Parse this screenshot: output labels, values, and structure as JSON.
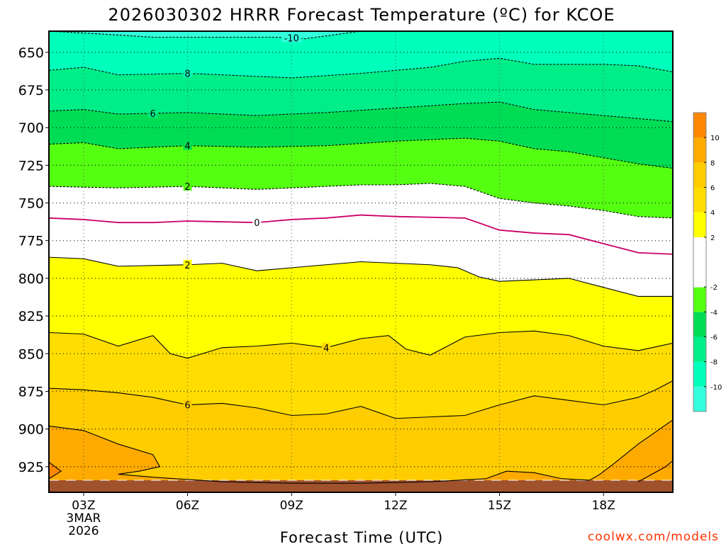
{
  "chart_data": {
    "type": "heatmap",
    "title": "2026030302 HRRR Forecast Temperature (ºC) for KCOE",
    "xlabel": "Forecast Time (UTC)",
    "ylabel": "",
    "credit": "coolwx.com/models",
    "x_range_hours": [
      2,
      20
    ],
    "y_range_hpa": [
      636,
      942
    ],
    "y_ticks": [
      650,
      675,
      700,
      725,
      750,
      775,
      800,
      825,
      850,
      875,
      900,
      925
    ],
    "x_ticks": [
      {
        "hour": 3,
        "label": "03Z",
        "extra": [
          "3MAR",
          "2026"
        ]
      },
      {
        "hour": 6,
        "label": "06Z"
      },
      {
        "hour": 9,
        "label": "09Z"
      },
      {
        "hour": 12,
        "label": "12Z"
      },
      {
        "hour": 15,
        "label": "15Z"
      },
      {
        "hour": 18,
        "label": "18Z"
      }
    ],
    "colorbar": [
      {
        "range": [
          -12,
          -10
        ],
        "color": "#33ffdd"
      },
      {
        "range": [
          -10,
          -8
        ],
        "color": "#00ffbb"
      },
      {
        "range": [
          -8,
          -6
        ],
        "color": "#00ee88"
      },
      {
        "range": [
          -6,
          -4
        ],
        "color": "#00dd55"
      },
      {
        "range": [
          -4,
          -2
        ],
        "color": "#55ff11"
      },
      {
        "range": [
          -2,
          2
        ],
        "color": "#ffffff"
      },
      {
        "range": [
          2,
          4
        ],
        "color": "#ffff00"
      },
      {
        "range": [
          4,
          6
        ],
        "color": "#ffdd00"
      },
      {
        "range": [
          6,
          8
        ],
        "color": "#ffcc00"
      },
      {
        "range": [
          8,
          10
        ],
        "color": "#ffaa00"
      },
      {
        "range": [
          10,
          12
        ],
        "color": "#ff8800"
      }
    ],
    "colorbar_labels": [
      "10",
      "8",
      "6",
      "4",
      "2",
      "-2",
      "-4",
      "-6",
      "-8",
      "-10"
    ],
    "contours": [
      {
        "value": -10,
        "label": "-10",
        "label_at": 9,
        "style": "dashed",
        "points": [
          [
            2.0,
            636
          ],
          [
            3.6,
            638
          ],
          [
            5.0,
            640
          ],
          [
            7.0,
            640
          ],
          [
            8.5,
            640
          ],
          [
            9.4,
            641
          ],
          [
            10.2,
            638.5
          ],
          [
            11.0,
            636
          ]
        ]
      },
      {
        "value": -8,
        "label": "8",
        "label_at": 6,
        "style": "dashed",
        "points": [
          [
            2.0,
            662
          ],
          [
            3.0,
            660
          ],
          [
            4.0,
            665
          ],
          [
            6.0,
            664
          ],
          [
            8.0,
            666
          ],
          [
            9.0,
            667
          ],
          [
            11.0,
            664
          ],
          [
            13.0,
            660
          ],
          [
            14.0,
            656
          ],
          [
            15.0,
            654
          ],
          [
            16.0,
            658
          ],
          [
            18.0,
            658
          ],
          [
            19.0,
            659
          ],
          [
            20.0,
            663
          ]
        ]
      },
      {
        "value": -6,
        "label": "6",
        "label_at": 5,
        "style": "dashed",
        "points": [
          [
            2.0,
            689
          ],
          [
            3.0,
            688
          ],
          [
            4.0,
            691
          ],
          [
            6.0,
            690
          ],
          [
            8.0,
            692
          ],
          [
            10.0,
            690
          ],
          [
            12.0,
            687
          ],
          [
            14.0,
            684
          ],
          [
            15.0,
            683
          ],
          [
            16.0,
            688
          ],
          [
            18.0,
            692
          ],
          [
            19.0,
            694
          ],
          [
            20.0,
            696
          ]
        ]
      },
      {
        "value": -4,
        "label": "4",
        "label_at": 6,
        "style": "dashed",
        "points": [
          [
            2.0,
            711
          ],
          [
            3.0,
            710
          ],
          [
            4.0,
            714
          ],
          [
            6.0,
            712
          ],
          [
            8.0,
            713
          ],
          [
            10.0,
            712
          ],
          [
            12.0,
            709
          ],
          [
            14.0,
            707
          ],
          [
            15.0,
            709
          ],
          [
            16.0,
            714
          ],
          [
            17.0,
            716
          ],
          [
            18.0,
            720
          ],
          [
            19.0,
            724
          ],
          [
            20.0,
            727
          ]
        ]
      },
      {
        "value": -2,
        "label": "2",
        "label_at": 6,
        "style": "dashed",
        "points": [
          [
            2.0,
            739
          ],
          [
            4.0,
            740
          ],
          [
            6.0,
            739
          ],
          [
            8.0,
            741
          ],
          [
            10.0,
            739
          ],
          [
            11.0,
            738
          ],
          [
            12.0,
            738
          ],
          [
            13.0,
            737
          ],
          [
            14.0,
            739
          ],
          [
            15.0,
            747
          ],
          [
            16.0,
            750
          ],
          [
            17.0,
            752
          ],
          [
            18.0,
            755
          ],
          [
            19.0,
            759
          ],
          [
            20.0,
            760
          ]
        ]
      },
      {
        "value": 0,
        "label": "0",
        "label_at": 8,
        "style": "solid",
        "color": "magenta",
        "points": [
          [
            2.0,
            760
          ],
          [
            3.0,
            761
          ],
          [
            4.0,
            763
          ],
          [
            5.0,
            763
          ],
          [
            6.0,
            762
          ],
          [
            8.0,
            763
          ],
          [
            9.0,
            761
          ],
          [
            10.0,
            760
          ],
          [
            11.0,
            758
          ],
          [
            12.0,
            759
          ],
          [
            14.0,
            760
          ],
          [
            15.0,
            768
          ],
          [
            16.0,
            770
          ],
          [
            17.0,
            771
          ],
          [
            18.0,
            777
          ],
          [
            19.0,
            783
          ],
          [
            20.0,
            784
          ]
        ]
      },
      {
        "value": 2,
        "label": "2",
        "label_at": 6,
        "style": "solid",
        "points": [
          [
            2.0,
            786
          ],
          [
            3.0,
            787
          ],
          [
            4.0,
            792
          ],
          [
            6.0,
            791
          ],
          [
            7.0,
            790
          ],
          [
            8.0,
            795
          ],
          [
            9.0,
            793
          ],
          [
            10.0,
            791
          ],
          [
            11.0,
            789
          ],
          [
            12.0,
            790
          ],
          [
            13.0,
            791
          ],
          [
            13.8,
            793
          ],
          [
            14.4,
            799
          ],
          [
            15.0,
            802
          ],
          [
            16.0,
            801
          ],
          [
            17.0,
            800
          ],
          [
            18.0,
            806
          ],
          [
            19.0,
            812
          ],
          [
            20.0,
            812
          ]
        ]
      },
      {
        "value": 4,
        "label": "4",
        "label_at": 10,
        "style": "solid",
        "points": [
          [
            2.0,
            836
          ],
          [
            3.0,
            837
          ],
          [
            4.0,
            845
          ],
          [
            5.0,
            838
          ],
          [
            5.5,
            850
          ],
          [
            6.0,
            853
          ],
          [
            7.0,
            846
          ],
          [
            8.0,
            845
          ],
          [
            9.0,
            843
          ],
          [
            10.0,
            846
          ],
          [
            11.0,
            840
          ],
          [
            11.8,
            838
          ],
          [
            12.3,
            847
          ],
          [
            13.0,
            851
          ],
          [
            14.0,
            839
          ],
          [
            15.0,
            836
          ],
          [
            16.0,
            835
          ],
          [
            17.0,
            838
          ],
          [
            18.0,
            845
          ],
          [
            19.0,
            848
          ],
          [
            20.0,
            843
          ]
        ]
      },
      {
        "value": 6,
        "label": "6",
        "label_at": 6,
        "style": "solid",
        "points": [
          [
            2.0,
            873
          ],
          [
            3.0,
            874
          ],
          [
            4.0,
            876
          ],
          [
            5.0,
            879
          ],
          [
            6.0,
            884
          ],
          [
            7.0,
            883
          ],
          [
            8.0,
            886
          ],
          [
            9.0,
            891
          ],
          [
            10.0,
            890
          ],
          [
            11.0,
            885
          ],
          [
            12.0,
            893
          ],
          [
            13.0,
            892
          ],
          [
            14.0,
            891
          ],
          [
            15.0,
            884
          ],
          [
            16.0,
            878
          ],
          [
            17.0,
            881
          ],
          [
            18.0,
            884
          ],
          [
            19.0,
            879
          ],
          [
            19.5,
            874
          ],
          [
            20.0,
            868
          ]
        ]
      },
      {
        "value": 8,
        "label": "",
        "label_at": 9,
        "style": "solid",
        "points": [
          [
            2.0,
            898
          ],
          [
            3.0,
            901
          ],
          [
            4.0,
            910
          ],
          [
            5.0,
            917
          ],
          [
            5.2,
            925
          ],
          [
            4.6,
            928
          ],
          [
            4.0,
            930
          ],
          [
            5.0,
            932
          ],
          [
            7.0,
            935
          ],
          [
            9.0,
            936
          ],
          [
            11.0,
            936
          ],
          [
            13.0,
            935
          ],
          [
            14.6,
            933
          ],
          [
            15.2,
            928
          ],
          [
            16.0,
            929
          ],
          [
            16.8,
            933
          ],
          [
            17.6,
            934
          ],
          [
            17.9,
            930
          ],
          [
            18.3,
            923
          ],
          [
            19.0,
            910
          ],
          [
            19.5,
            902
          ],
          [
            20.0,
            894
          ]
        ]
      },
      {
        "value": 10,
        "label": "",
        "label_at": 19.6,
        "style": "solid",
        "points": [
          [
            19.0,
            935
          ],
          [
            19.4,
            930
          ],
          [
            19.8,
            925
          ],
          [
            20.0,
            921
          ]
        ]
      },
      {
        "value": 10,
        "label": "",
        "label_at": 2.2,
        "style": "solid",
        "points": [
          [
            2.0,
            922
          ],
          [
            2.35,
            928
          ],
          [
            2.0,
            933
          ]
        ]
      }
    ],
    "ground_level_hpa": 934
  }
}
